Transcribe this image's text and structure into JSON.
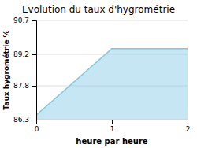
{
  "chart_data": {
    "type": "area",
    "title": "Evolution du taux d'hygrométrie",
    "xlabel": "heure par heure",
    "ylabel": "Taux hygrométrie %",
    "x": [
      0,
      1,
      2
    ],
    "values": [
      86.5,
      89.45,
      89.45
    ],
    "xlim": [
      0,
      2
    ],
    "ylim": [
      86.3,
      90.7
    ],
    "xticks": [
      0,
      1,
      2
    ],
    "yticks": [
      86.3,
      87.8,
      89.2,
      90.7
    ],
    "color": "#7ec8e3",
    "grid": true
  }
}
